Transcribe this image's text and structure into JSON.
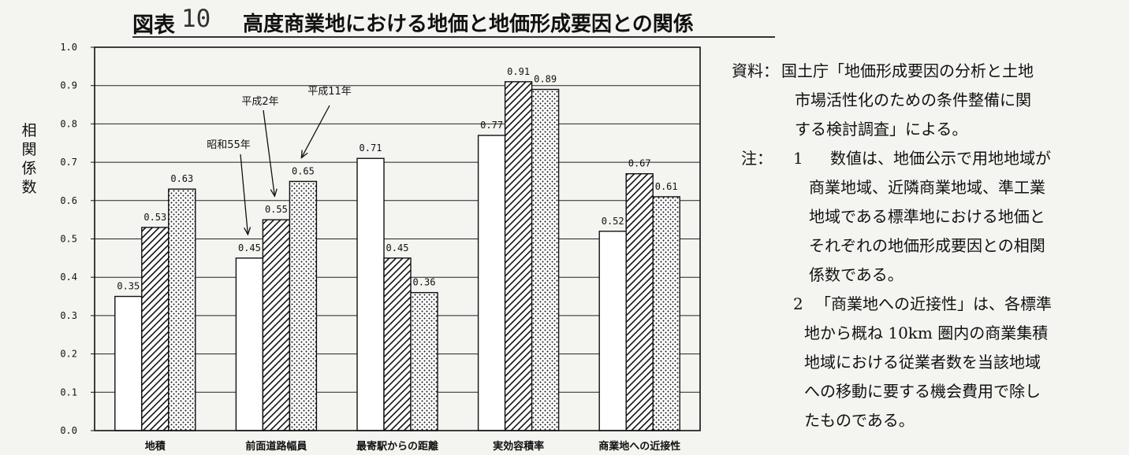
{
  "figure": {
    "title_prefix": "図表",
    "title_number": "10",
    "title_text": "高度商業地における地価と地価形成要因との関係"
  },
  "chart_data": {
    "type": "bar",
    "ylabel": "相関係数",
    "ylim": [
      0.0,
      1.0
    ],
    "y_ticks": [
      "0.0",
      "0.1",
      "0.2",
      "0.3",
      "0.4",
      "0.5",
      "0.6",
      "0.7",
      "0.8",
      "0.9",
      "1.0"
    ],
    "grid": true,
    "categories": [
      "地積",
      "前面道路幅員",
      "最寄駅からの距離",
      "実効容積率",
      "商業地への近接性"
    ],
    "series": [
      {
        "name": "昭和55年",
        "pattern": "blank",
        "values": [
          0.35,
          0.45,
          0.71,
          0.77,
          0.52
        ],
        "labels": [
          "0.35",
          "0.45",
          "0.71",
          "0.77",
          "0.52"
        ]
      },
      {
        "name": "平成2年",
        "pattern": "hatch",
        "values": [
          0.53,
          0.55,
          0.45,
          0.91,
          0.67
        ],
        "labels": [
          "0.53",
          "0.55",
          "0.45",
          "0.91",
          "0.67"
        ]
      },
      {
        "name": "平成11年",
        "pattern": "dots",
        "values": [
          0.63,
          0.65,
          0.36,
          0.89,
          0.61
        ],
        "labels": [
          "0.63",
          "0.65",
          "0.36",
          "0.89",
          "0.61"
        ]
      }
    ],
    "colors": {
      "bar_fill": "#ffffff",
      "ink": "#111111",
      "grid": "#222222"
    }
  },
  "notes": {
    "source_label": "資料：",
    "source_lines": [
      "国土庁「地価形成要因の分析と土地",
      "市場活性化のための条件整備に関",
      "する検討調査」による。"
    ],
    "note_label": "注：",
    "note1_num": "1",
    "note1_lines": [
      "数値は、地価公示で用地地域が",
      "商業地域、近隣商業地域、準工業",
      "地域である標準地における地価と",
      "それぞれの地価形成要因との相関",
      "係数である。"
    ],
    "note2_num": "2",
    "note2_lines": [
      "「商業地への近接性」は、各標準",
      "地から概ね 10km 圏内の商業集積",
      "地域における従業者数を当該地域",
      "への移動に要する機会費用で除し",
      "たものである。"
    ]
  }
}
